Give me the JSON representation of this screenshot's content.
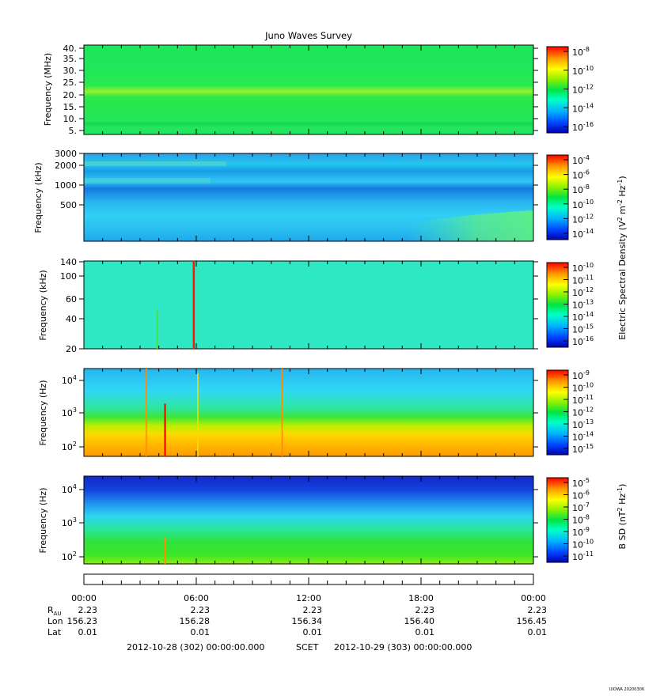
{
  "title": "Juno Waves Survey",
  "footer_stamp": "UIOWA 20200306",
  "colors": {
    "frame": "#000000",
    "rainbow": [
      "#0000c8",
      "#0050ff",
      "#00c8ff",
      "#00ffb4",
      "#00e632",
      "#96f000",
      "#ffff00",
      "#ffaa00",
      "#ff0000"
    ]
  },
  "chart_data": [
    {
      "type": "heatmap",
      "panel": 1,
      "ylabel": "Frequency (MHz)",
      "yticks": [
        "40.",
        "35.",
        "30.",
        "25.",
        "20.",
        "15.",
        "10.",
        "5."
      ],
      "ylim": [
        3.5,
        41
      ],
      "bands": [
        {
          "freq": 21.0,
          "level": "yellow-green"
        },
        {
          "freq": 8.5,
          "level": "green"
        }
      ],
      "colorbar": {
        "labels": [
          "10^-8",
          "10^-10",
          "10^-12",
          "10^-14",
          "10^-16"
        ],
        "exponents": [
          "-8",
          "-10",
          "-12",
          "-14",
          "-16"
        ]
      }
    },
    {
      "type": "heatmap",
      "panel": 2,
      "ylabel": "Frequency (kHz)",
      "yticks": [
        "3000",
        "2000",
        "1000",
        "500"
      ],
      "colorbar": {
        "labels": [
          "10^-4",
          "10^-6",
          "10^-8",
          "10^-10",
          "10^-12",
          "10^-14"
        ],
        "exponents": [
          "-4",
          "-6",
          "-8",
          "-10",
          "-12",
          "-14"
        ]
      }
    },
    {
      "type": "heatmap",
      "panel": 3,
      "ylabel": "Frequency (kHz)",
      "yticks": [
        "140",
        "100",
        "60",
        "40",
        "20"
      ],
      "spikes": [
        {
          "time": "05:52",
          "level": "red"
        },
        {
          "time": "03:55",
          "level": "green"
        }
      ],
      "colorbar": {
        "labels": [
          "10^-10",
          "10^-11",
          "10^-12",
          "10^-13",
          "10^-14",
          "10^-15",
          "10^-16"
        ],
        "exponents": [
          "-10",
          "-11",
          "-12",
          "-13",
          "-14",
          "-15",
          "-16"
        ]
      }
    },
    {
      "type": "heatmap",
      "panel": 4,
      "ylabel": "Frequency (Hz)",
      "yticks": [
        "10^4",
        "10^3",
        "10^2"
      ],
      "ytick_exponents": [
        "4",
        "3",
        "2"
      ],
      "spikes": [
        {
          "time": "03:20",
          "level": "orange"
        },
        {
          "time": "04:20",
          "level": "red"
        },
        {
          "time": "06:05",
          "level": "yellow"
        },
        {
          "time": "10:35",
          "level": "orange"
        }
      ],
      "colorbar": {
        "labels": [
          "10^-9",
          "10^-10",
          "10^-11",
          "10^-12",
          "10^-13",
          "10^-14",
          "10^-15"
        ],
        "exponents": [
          "-9",
          "-10",
          "-11",
          "-12",
          "-13",
          "-14",
          "-15"
        ]
      }
    },
    {
      "type": "heatmap",
      "panel": 5,
      "ylabel": "Frequency (Hz)",
      "yticks": [
        "10^4",
        "10^3",
        "10^2"
      ],
      "ytick_exponents": [
        "4",
        "3",
        "2"
      ],
      "spikes": [
        {
          "time": "04:20",
          "level": "orange"
        }
      ],
      "colorbar": {
        "labels": [
          "10^-5",
          "10^-6",
          "10^-7",
          "10^-8",
          "10^-9",
          "10^-10",
          "10^-11"
        ],
        "exponents": [
          "-5",
          "-6",
          "-7",
          "-8",
          "-9",
          "-10",
          "-11"
        ]
      }
    }
  ],
  "colorbar_titles": {
    "electric": "Electric Spectral Density (V^2 m^-2 Hz^-1)",
    "magnetic": "B SD (nT^2 Hz^-1)"
  },
  "time_axis": {
    "labels": [
      "00:00",
      "06:00",
      "12:00",
      "18:00",
      "00:00"
    ],
    "rows": [
      {
        "name": "R_AU",
        "name_main": "R",
        "name_sub": "AU",
        "values": [
          "2.23",
          "2.23",
          "2.23",
          "2.23",
          "2.23"
        ]
      },
      {
        "name": "Lon",
        "name_main": "Lon",
        "name_sub": "",
        "values": [
          "156.23",
          "156.28",
          "156.34",
          "156.40",
          "156.45"
        ]
      },
      {
        "name": "Lat",
        "name_main": "Lat",
        "name_sub": "",
        "values": [
          "0.01",
          "0.01",
          "0.01",
          "0.01",
          "0.01"
        ]
      }
    ],
    "start": "2012-10-28 (302) 00:00:00.000",
    "scet_label": "SCET",
    "end": "2012-10-29 (303) 00:00:00.000"
  }
}
